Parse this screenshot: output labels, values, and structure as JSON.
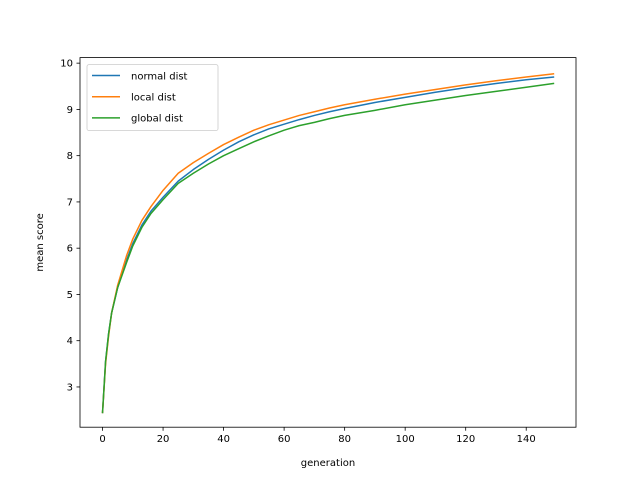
{
  "chart_data": {
    "type": "line",
    "title": "",
    "xlabel": "generation",
    "ylabel": "mean score",
    "xlim": [
      -7.45,
      156.45
    ],
    "ylim": [
      2.13,
      10.12
    ],
    "xticks": [
      0,
      20,
      40,
      60,
      80,
      100,
      120,
      140
    ],
    "yticks": [
      3,
      4,
      5,
      6,
      7,
      8,
      9,
      10
    ],
    "grid": false,
    "legend_position": "top-left",
    "series": [
      {
        "name": "normal dist",
        "color": "#1f77b4",
        "points": [
          [
            0,
            2.45
          ],
          [
            1,
            3.55
          ],
          [
            2,
            4.15
          ],
          [
            3,
            4.6
          ],
          [
            5,
            5.15
          ],
          [
            8,
            5.75
          ],
          [
            10,
            6.1
          ],
          [
            13,
            6.5
          ],
          [
            16,
            6.8
          ],
          [
            20,
            7.1
          ],
          [
            25,
            7.45
          ],
          [
            30,
            7.7
          ],
          [
            35,
            7.92
          ],
          [
            40,
            8.12
          ],
          [
            45,
            8.3
          ],
          [
            50,
            8.45
          ],
          [
            55,
            8.58
          ],
          [
            60,
            8.68
          ],
          [
            65,
            8.78
          ],
          [
            70,
            8.87
          ],
          [
            75,
            8.95
          ],
          [
            80,
            9.02
          ],
          [
            90,
            9.15
          ],
          [
            100,
            9.26
          ],
          [
            110,
            9.37
          ],
          [
            120,
            9.47
          ],
          [
            130,
            9.56
          ],
          [
            140,
            9.64
          ],
          [
            149,
            9.7
          ]
        ]
      },
      {
        "name": "local dist",
        "color": "#ff7f0e",
        "points": [
          [
            0,
            2.45
          ],
          [
            1,
            3.5
          ],
          [
            2,
            4.1
          ],
          [
            3,
            4.6
          ],
          [
            5,
            5.2
          ],
          [
            8,
            5.85
          ],
          [
            10,
            6.2
          ],
          [
            13,
            6.6
          ],
          [
            16,
            6.9
          ],
          [
            20,
            7.25
          ],
          [
            25,
            7.62
          ],
          [
            30,
            7.85
          ],
          [
            35,
            8.05
          ],
          [
            40,
            8.24
          ],
          [
            45,
            8.4
          ],
          [
            50,
            8.55
          ],
          [
            55,
            8.67
          ],
          [
            60,
            8.77
          ],
          [
            65,
            8.87
          ],
          [
            70,
            8.95
          ],
          [
            75,
            9.03
          ],
          [
            80,
            9.1
          ],
          [
            90,
            9.22
          ],
          [
            100,
            9.33
          ],
          [
            110,
            9.43
          ],
          [
            120,
            9.53
          ],
          [
            130,
            9.62
          ],
          [
            140,
            9.7
          ],
          [
            149,
            9.77
          ]
        ]
      },
      {
        "name": "global dist",
        "color": "#2ca02c",
        "points": [
          [
            0,
            2.45
          ],
          [
            1,
            3.55
          ],
          [
            2,
            4.15
          ],
          [
            3,
            4.6
          ],
          [
            5,
            5.15
          ],
          [
            8,
            5.7
          ],
          [
            10,
            6.05
          ],
          [
            13,
            6.45
          ],
          [
            16,
            6.75
          ],
          [
            20,
            7.05
          ],
          [
            25,
            7.4
          ],
          [
            30,
            7.62
          ],
          [
            35,
            7.82
          ],
          [
            40,
            8.0
          ],
          [
            45,
            8.15
          ],
          [
            50,
            8.3
          ],
          [
            55,
            8.43
          ],
          [
            60,
            8.55
          ],
          [
            65,
            8.65
          ],
          [
            70,
            8.72
          ],
          [
            75,
            8.8
          ],
          [
            80,
            8.87
          ],
          [
            90,
            8.98
          ],
          [
            100,
            9.1
          ],
          [
            110,
            9.2
          ],
          [
            120,
            9.3
          ],
          [
            130,
            9.39
          ],
          [
            140,
            9.48
          ],
          [
            149,
            9.56
          ]
        ]
      }
    ]
  }
}
